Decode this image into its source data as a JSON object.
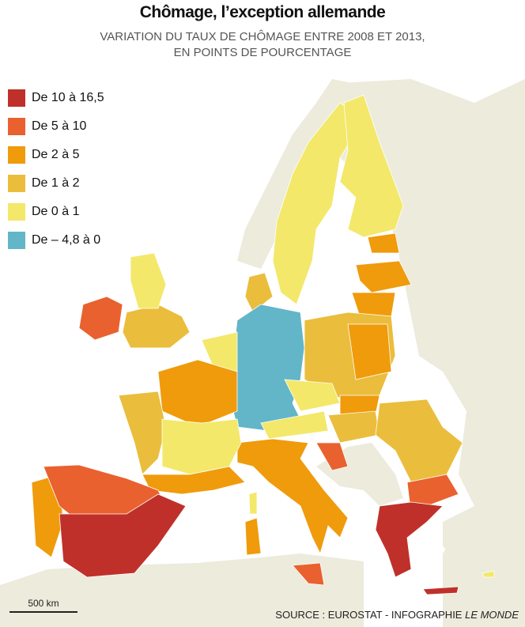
{
  "title": "Chômage, l’exception allemande",
  "subtitle_line1": "VARIATION DU TAUX DE CHÔMAGE ENTRE 2008 ET 2013,",
  "subtitle_line2": "EN POINTS DE POURCENTAGE",
  "legend": [
    {
      "label": "De 10 à 16,5",
      "color": "#c0302a"
    },
    {
      "label": "De 5 à 10",
      "color": "#e9612f"
    },
    {
      "label": "De 2 à 5",
      "color": "#ef9b0c"
    },
    {
      "label": "De 1 à 2",
      "color": "#eabd3c"
    },
    {
      "label": "De 0 à 1",
      "color": "#f3e86a"
    },
    {
      "label": "De – 4,8 à 0",
      "color": "#62b6c8"
    }
  ],
  "scale_label": "500 km",
  "source_prefix": "SOURCE : EUROSTAT - INFOGRAPHIE ",
  "source_italic": "LE MONDE",
  "colors": {
    "land": "#ecebdc",
    "sea": "#ffffff"
  }
}
